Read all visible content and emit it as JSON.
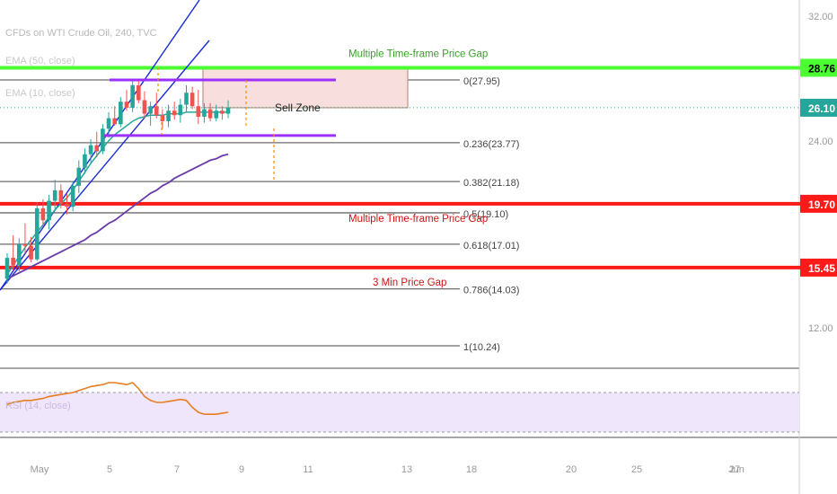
{
  "header": {
    "symbol": "CFDs on WTI Crude Oil, 240, TVC",
    "ema50": "EMA (50, close)",
    "ema10": "EMA (10, close)",
    "rsi": "RSI (14, close)"
  },
  "chart_data": {
    "type": "line",
    "price_axis": {
      "ticks": [
        "32.00",
        "24.00",
        "12.00"
      ],
      "ylim": [
        8.0,
        33.0
      ]
    },
    "time_axis": {
      "ticks": [
        "May",
        "5",
        "7",
        "9",
        "11",
        "13",
        "18",
        "20",
        "25",
        "27",
        "Jun"
      ]
    },
    "candles": [
      {
        "o": 14.7,
        "h": 16.4,
        "l": 14.4,
        "c": 16.1
      },
      {
        "o": 16.1,
        "h": 17.6,
        "l": 15.3,
        "c": 15.6
      },
      {
        "o": 15.6,
        "h": 17.4,
        "l": 15.2,
        "c": 17.0
      },
      {
        "o": 17.0,
        "h": 18.4,
        "l": 16.4,
        "c": 16.9
      },
      {
        "o": 16.9,
        "h": 17.5,
        "l": 15.8,
        "c": 16.0
      },
      {
        "o": 16.0,
        "h": 19.8,
        "l": 15.9,
        "c": 19.4
      },
      {
        "o": 19.4,
        "h": 20.0,
        "l": 18.2,
        "c": 18.6
      },
      {
        "o": 18.6,
        "h": 20.3,
        "l": 18.0,
        "c": 19.9
      },
      {
        "o": 19.9,
        "h": 21.3,
        "l": 19.3,
        "c": 20.6
      },
      {
        "o": 20.6,
        "h": 21.0,
        "l": 19.4,
        "c": 19.7
      },
      {
        "o": 19.7,
        "h": 20.4,
        "l": 19.0,
        "c": 19.5
      },
      {
        "o": 19.5,
        "h": 21.2,
        "l": 19.2,
        "c": 20.9
      },
      {
        "o": 20.9,
        "h": 22.6,
        "l": 20.4,
        "c": 22.1
      },
      {
        "o": 22.1,
        "h": 23.4,
        "l": 21.7,
        "c": 23.0
      },
      {
        "o": 23.0,
        "h": 24.0,
        "l": 22.4,
        "c": 23.6
      },
      {
        "o": 23.6,
        "h": 24.5,
        "l": 22.8,
        "c": 23.2
      },
      {
        "o": 23.2,
        "h": 25.0,
        "l": 23.0,
        "c": 24.7
      },
      {
        "o": 24.7,
        "h": 25.8,
        "l": 24.1,
        "c": 25.4
      },
      {
        "o": 25.4,
        "h": 26.2,
        "l": 24.9,
        "c": 25.0
      },
      {
        "o": 25.0,
        "h": 26.8,
        "l": 24.8,
        "c": 26.5
      },
      {
        "o": 26.5,
        "h": 27.3,
        "l": 25.9,
        "c": 26.1
      },
      {
        "o": 26.1,
        "h": 28.0,
        "l": 25.8,
        "c": 27.6
      },
      {
        "o": 27.6,
        "h": 27.9,
        "l": 26.4,
        "c": 26.6
      },
      {
        "o": 26.6,
        "h": 27.2,
        "l": 25.4,
        "c": 25.7
      },
      {
        "o": 25.7,
        "h": 26.5,
        "l": 24.9,
        "c": 26.2
      },
      {
        "o": 26.2,
        "h": 27.1,
        "l": 25.4,
        "c": 25.6
      },
      {
        "o": 25.6,
        "h": 26.0,
        "l": 24.7,
        "c": 25.2
      },
      {
        "o": 25.2,
        "h": 26.3,
        "l": 24.8,
        "c": 25.9
      },
      {
        "o": 25.9,
        "h": 26.5,
        "l": 25.3,
        "c": 25.6
      },
      {
        "o": 25.6,
        "h": 26.7,
        "l": 25.1,
        "c": 26.3
      },
      {
        "o": 26.3,
        "h": 27.6,
        "l": 25.8,
        "c": 27.1
      },
      {
        "o": 27.1,
        "h": 27.5,
        "l": 26.0,
        "c": 26.2
      },
      {
        "o": 26.2,
        "h": 27.3,
        "l": 25.0,
        "c": 25.5
      },
      {
        "o": 25.5,
        "h": 26.4,
        "l": 25.1,
        "c": 26.0
      },
      {
        "o": 26.0,
        "h": 26.4,
        "l": 25.2,
        "c": 25.4
      },
      {
        "o": 25.4,
        "h": 26.3,
        "l": 25.2,
        "c": 25.9
      },
      {
        "o": 25.9,
        "h": 26.2,
        "l": 25.3,
        "c": 25.7
      },
      {
        "o": 25.7,
        "h": 26.6,
        "l": 25.4,
        "c": 26.1
      }
    ],
    "ema10": [
      15.0,
      15.6,
      16.2,
      16.8,
      17.3,
      17.8,
      18.3,
      18.8,
      19.3,
      19.7,
      20.1,
      20.6,
      21.2,
      21.8,
      22.4,
      22.9,
      23.4,
      23.9,
      24.3,
      24.6,
      24.9,
      25.2,
      25.4,
      25.5,
      25.6,
      25.6,
      25.6,
      25.7,
      25.7,
      25.7,
      25.8,
      25.8,
      25.8,
      25.8,
      25.8,
      25.8,
      25.8,
      25.8
    ],
    "ema50": [
      14.7,
      14.9,
      15.1,
      15.3,
      15.5,
      15.7,
      15.9,
      16.1,
      16.3,
      16.5,
      16.7,
      16.9,
      17.1,
      17.3,
      17.6,
      17.8,
      18.1,
      18.4,
      18.6,
      18.9,
      19.2,
      19.5,
      19.8,
      20.1,
      20.4,
      20.6,
      20.9,
      21.1,
      21.4,
      21.6,
      21.8,
      22.0,
      22.2,
      22.4,
      22.6,
      22.7,
      22.9,
      23.0
    ],
    "rsi": [
      58,
      60,
      61,
      62,
      62,
      63,
      64,
      66,
      67,
      68,
      69,
      70,
      72,
      74,
      76,
      77,
      78,
      80,
      80,
      79,
      78,
      80,
      74,
      66,
      62,
      60,
      60,
      61,
      62,
      63,
      62,
      55,
      50,
      48,
      48,
      48,
      49,
      50
    ],
    "fib_levels": [
      {
        "label": "0(27.95)",
        "value": 27.95
      },
      {
        "label": "0.236(23.77)",
        "value": 23.77
      },
      {
        "label": "0.382(21.18)",
        "value": 21.18
      },
      {
        "label": "0.5(19.10)",
        "value": 19.1
      },
      {
        "label": "0.618(17.01)",
        "value": 17.01
      },
      {
        "label": "0.786(14.03)",
        "value": 14.03
      },
      {
        "label": "1(10.24)",
        "value": 10.24
      }
    ],
    "horizontal_levels": [
      {
        "value": 28.76,
        "label": "28.76",
        "color": "#4cff33"
      },
      {
        "value": 19.7,
        "label": "19.70",
        "color": "#ff1a1a"
      },
      {
        "value": 15.45,
        "label": "15.45",
        "color": "#ff1a1a"
      }
    ],
    "current_price": {
      "value": 26.1,
      "label": "26.10",
      "color": "#26a69a"
    },
    "sell_zone": {
      "label": "Sell Zone",
      "top": 28.76,
      "bottom": 26.1
    },
    "purple_top": 27.95,
    "purple_bottom": 24.25,
    "annotations": {
      "gap_green": "Multiple Time-frame Price Gap",
      "gap_red": "Multiple Time-frame Price Gap",
      "gap_3min": "3 Min Price Gap"
    },
    "colors": {
      "bull": "#26a69a",
      "bear": "#ef5350",
      "ema10": "#26a69a",
      "ema50": "#6a3aa8",
      "channel": "#1a2bd8",
      "fib": "#6b6b6b",
      "rsi": "#e67e22",
      "rsi_band": "#efe6fb"
    }
  }
}
